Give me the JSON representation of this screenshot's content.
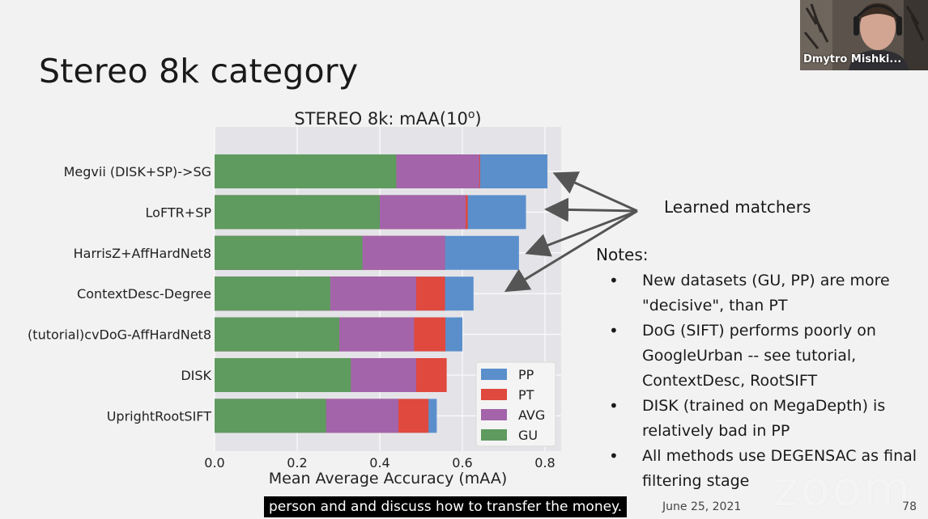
{
  "slide": {
    "title": "Stereo 8k category",
    "date": "June 25, 2021",
    "page_number": "78"
  },
  "annotation": {
    "label": "Learned matchers"
  },
  "notes": {
    "heading": "Notes:",
    "items": [
      "New datasets (GU, PP) are more \"decisive\", than PT",
      "DoG (SIFT) performs poorly on GoogleUrban -- see tutorial, ContextDesc, RootSIFT",
      "DISK (trained on MegaDepth) is relatively bad in PP",
      "All methods use DEGENSAC as final filtering stage"
    ]
  },
  "video": {
    "participant_name": "Dmytro Mishki...",
    "caption": "person and and discuss how to transfer the money.",
    "watermark": "zoom"
  },
  "chart_data": {
    "type": "bar",
    "orientation": "horizontal",
    "stacked": false,
    "title": "STEREO 8k: mAA(10",
    "title_superscript": "o",
    "title_suffix": ")",
    "xlabel": "Mean Average Accuracy (mAA)",
    "ylabel": "",
    "xlim": [
      0,
      0.85
    ],
    "xticks": [
      "0.0",
      "0.2",
      "0.4",
      "0.6",
      "0.8"
    ],
    "grid": true,
    "legend_position": "bottom-right",
    "categories": [
      "Megvii (DISK+SP)->SG",
      "LoFTR+SP",
      "HarrisZ+AffHardNet8",
      "ContextDesc-Degree",
      "(tutorial)cvDoG-AffHardNet8",
      "DISK",
      "UprightRootSIFT"
    ],
    "series": [
      {
        "name": "PP",
        "color": "#5b8fcc",
        "values": [
          0.806,
          0.754,
          0.737,
          0.627,
          0.6,
          0.495,
          0.538
        ]
      },
      {
        "name": "PT",
        "color": "#e0493e",
        "values": [
          0.643,
          0.613,
          0.558,
          0.558,
          0.559,
          0.562,
          0.518
        ]
      },
      {
        "name": "AVG",
        "color": "#a364aa",
        "values": [
          0.641,
          0.608,
          0.558,
          0.488,
          0.483,
          0.488,
          0.445
        ]
      },
      {
        "name": "GU",
        "color": "#5f9b5e",
        "values": [
          0.44,
          0.4,
          0.358,
          0.28,
          0.302,
          0.33,
          0.27
        ]
      }
    ]
  }
}
